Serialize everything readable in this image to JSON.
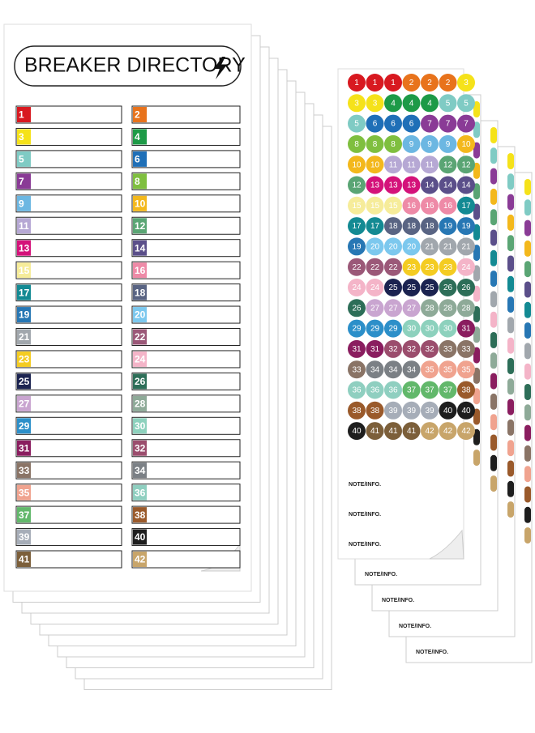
{
  "directory": {
    "title": "BREAKER DIRECTORY",
    "entries": [
      {
        "number": 1,
        "color": "#d81920"
      },
      {
        "number": 2,
        "color": "#e8731c"
      },
      {
        "number": 3,
        "color": "#f5e21a"
      },
      {
        "number": 4,
        "color": "#1d9a47"
      },
      {
        "number": 5,
        "color": "#7fcbc4"
      },
      {
        "number": 6,
        "color": "#1f6fb7"
      },
      {
        "number": 7,
        "color": "#8a3b96"
      },
      {
        "number": 8,
        "color": "#7fbf3f"
      },
      {
        "number": 9,
        "color": "#6cb7e2"
      },
      {
        "number": 10,
        "color": "#f3b81c"
      },
      {
        "number": 11,
        "color": "#b6a8d4"
      },
      {
        "number": 12,
        "color": "#5aa574"
      },
      {
        "number": 13,
        "color": "#d4127a"
      },
      {
        "number": 14,
        "color": "#5b4f8a"
      },
      {
        "number": 15,
        "color": "#f6ec9a"
      },
      {
        "number": 16,
        "color": "#ee8aa7"
      },
      {
        "number": 17,
        "color": "#138a93"
      },
      {
        "number": 18,
        "color": "#596483"
      },
      {
        "number": 19,
        "color": "#2777b4"
      },
      {
        "number": 20,
        "color": "#7cc8ee"
      },
      {
        "number": 21,
        "color": "#a1a7ad"
      },
      {
        "number": 22,
        "color": "#9b5878"
      },
      {
        "number": 23,
        "color": "#f4cc22"
      },
      {
        "number": 24,
        "color": "#f4b4c8"
      },
      {
        "number": 25,
        "color": "#1b2350"
      },
      {
        "number": 26,
        "color": "#2d6e58"
      },
      {
        "number": 27,
        "color": "#c9a5d0"
      },
      {
        "number": 28,
        "color": "#8eaa98"
      },
      {
        "number": 29,
        "color": "#2c8fc9"
      },
      {
        "number": 30,
        "color": "#8dd1bd"
      },
      {
        "number": 31,
        "color": "#8a1d5f"
      },
      {
        "number": 32,
        "color": "#9b4d6d"
      },
      {
        "number": 33,
        "color": "#8a7466"
      },
      {
        "number": 34,
        "color": "#7b8085"
      },
      {
        "number": 35,
        "color": "#f0a38f"
      },
      {
        "number": 36,
        "color": "#8fcfc0"
      },
      {
        "number": 37,
        "color": "#62b86b"
      },
      {
        "number": 38,
        "color": "#9a5a2b"
      },
      {
        "number": 39,
        "color": "#a6adb8"
      },
      {
        "number": 40,
        "color": "#1e1e1e"
      },
      {
        "number": 41,
        "color": "#7c5f3a"
      },
      {
        "number": 42,
        "color": "#c8a56a"
      }
    ]
  },
  "stickers": {
    "rows": [
      [
        1,
        1,
        1,
        2,
        2,
        2,
        3
      ],
      [
        3,
        3,
        4,
        4,
        4,
        5,
        5
      ],
      [
        5,
        6,
        6,
        6,
        7,
        7,
        7
      ],
      [
        8,
        8,
        8,
        9,
        9,
        9,
        10
      ],
      [
        10,
        10,
        11,
        11,
        11,
        12,
        12
      ],
      [
        12,
        13,
        13,
        13,
        14,
        14,
        14
      ],
      [
        15,
        15,
        15,
        16,
        16,
        16,
        17
      ],
      [
        17,
        17,
        18,
        18,
        18,
        19,
        19
      ],
      [
        19,
        20,
        20,
        20,
        21,
        21,
        21
      ],
      [
        22,
        22,
        22,
        23,
        23,
        23,
        24
      ],
      [
        24,
        24,
        25,
        25,
        25,
        26,
        26
      ],
      [
        26,
        27,
        27,
        27,
        28,
        28,
        28
      ],
      [
        29,
        29,
        29,
        30,
        30,
        30,
        31
      ],
      [
        31,
        31,
        32,
        32,
        32,
        33,
        33
      ],
      [
        33,
        34,
        34,
        34,
        35,
        35,
        35
      ],
      [
        36,
        36,
        36,
        37,
        37,
        37,
        38
      ],
      [
        38,
        38,
        39,
        39,
        39,
        40,
        40
      ],
      [
        40,
        41,
        41,
        41,
        42,
        42,
        42
      ]
    ],
    "notes": [
      "NOTE/INFO.",
      "NOTE/INFO.",
      "NOTE/INFO."
    ]
  },
  "back_sheet_notes": [
    "NOTE/INFO.",
    "NOTE/INFO.",
    "NOTE/INFO.",
    "NOTE/INFO."
  ]
}
